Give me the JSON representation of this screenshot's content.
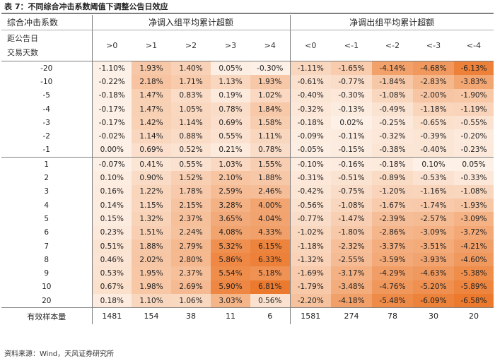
{
  "caption": "表 7：不同综合冲击系数阈值下调整公告日效应",
  "source": "资料来源：Wind，天风证券研究所",
  "header": {
    "corner_top": "综合冲击系数",
    "corner_bottom_1": "距公告日",
    "corner_bottom_2": "交易天数",
    "group_in": "净调入组平均累计超额",
    "group_out": "净调出组平均累计超额",
    "thresholds_in": [
      ">0",
      ">1",
      ">2",
      ">3",
      ">4"
    ],
    "thresholds_out": [
      "<0",
      "<-1",
      "<-2",
      "<-3",
      "<-4"
    ]
  },
  "rows": [
    {
      "day": "-20",
      "in": [
        "-1.10%",
        "1.93%",
        "1.40%",
        "0.05%",
        "-0.30%"
      ],
      "out": [
        "-1.11%",
        "-1.65%",
        "-4.14%",
        "-4.68%",
        "-6.13%"
      ]
    },
    {
      "day": "-10",
      "in": [
        "-0.22%",
        "2.18%",
        "1.71%",
        "1.13%",
        "1.93%"
      ],
      "out": [
        "-0.61%",
        "-0.77%",
        "-1.84%",
        "-2.83%",
        "-3.83%"
      ]
    },
    {
      "day": "-5",
      "in": [
        "-0.18%",
        "1.47%",
        "0.83%",
        "0.19%",
        "1.02%"
      ],
      "out": [
        "-0.40%",
        "-0.30%",
        "-1.08%",
        "-2.00%",
        "-1.90%"
      ]
    },
    {
      "day": "-4",
      "in": [
        "-0.17%",
        "1.47%",
        "1.05%",
        "0.78%",
        "1.84%"
      ],
      "out": [
        "-0.32%",
        "-0.13%",
        "-0.49%",
        "-1.18%",
        "-1.19%"
      ]
    },
    {
      "day": "-3",
      "in": [
        "-0.17%",
        "1.42%",
        "1.14%",
        "0.69%",
        "1.58%"
      ],
      "out": [
        "-0.18%",
        "0.02%",
        "-0.25%",
        "-0.65%",
        "-0.55%"
      ]
    },
    {
      "day": "-2",
      "in": [
        "-0.02%",
        "1.14%",
        "0.88%",
        "0.55%",
        "1.11%"
      ],
      "out": [
        "-0.09%",
        "-0.11%",
        "-0.32%",
        "-0.39%",
        "-0.20%"
      ]
    },
    {
      "day": "-1",
      "in": [
        "0.00%",
        "0.69%",
        "0.52%",
        "0.21%",
        "0.78%"
      ],
      "out": [
        "-0.05%",
        "-0.15%",
        "-0.38%",
        "-0.40%",
        "-0.23%"
      ]
    },
    {
      "day": "1",
      "in": [
        "-0.07%",
        "0.41%",
        "0.55%",
        "1.03%",
        "1.55%"
      ],
      "out": [
        "-0.10%",
        "-0.16%",
        "-0.18%",
        "0.10%",
        "0.05%"
      ]
    },
    {
      "day": "2",
      "in": [
        "0.10%",
        "0.90%",
        "1.52%",
        "2.10%",
        "1.88%"
      ],
      "out": [
        "-0.31%",
        "-0.51%",
        "-0.89%",
        "-0.53%",
        "-0.33%"
      ]
    },
    {
      "day": "3",
      "in": [
        "0.16%",
        "1.22%",
        "1.78%",
        "2.59%",
        "2.46%"
      ],
      "out": [
        "-0.42%",
        "-0.75%",
        "-1.20%",
        "-1.16%",
        "-1.08%"
      ]
    },
    {
      "day": "4",
      "in": [
        "0.14%",
        "1.15%",
        "2.15%",
        "3.28%",
        "4.00%"
      ],
      "out": [
        "-0.56%",
        "-1.08%",
        "-1.67%",
        "-1.74%",
        "-1.93%"
      ]
    },
    {
      "day": "5",
      "in": [
        "0.15%",
        "1.32%",
        "2.37%",
        "3.65%",
        "4.04%"
      ],
      "out": [
        "-0.77%",
        "-1.47%",
        "-2.39%",
        "-2.57%",
        "-3.09%"
      ]
    },
    {
      "day": "6",
      "in": [
        "0.23%",
        "1.51%",
        "2.24%",
        "4.08%",
        "4.33%"
      ],
      "out": [
        "-1.02%",
        "-1.80%",
        "-2.86%",
        "-3.09%",
        "-3.72%"
      ]
    },
    {
      "day": "7",
      "in": [
        "0.51%",
        "1.88%",
        "2.79%",
        "5.32%",
        "6.15%"
      ],
      "out": [
        "-1.18%",
        "-2.32%",
        "-3.37%",
        "-3.51%",
        "-4.21%"
      ]
    },
    {
      "day": "8",
      "in": [
        "0.46%",
        "2.02%",
        "2.80%",
        "5.86%",
        "6.33%"
      ],
      "out": [
        "-1.32%",
        "-2.55%",
        "-3.59%",
        "-3.93%",
        "-4.60%"
      ]
    },
    {
      "day": "9",
      "in": [
        "0.53%",
        "1.95%",
        "2.37%",
        "5.54%",
        "5.18%"
      ],
      "out": [
        "-1.69%",
        "-3.17%",
        "-4.29%",
        "-4.63%",
        "-5.38%"
      ]
    },
    {
      "day": "10",
      "in": [
        "0.67%",
        "1.98%",
        "2.69%",
        "5.90%",
        "6.81%"
      ],
      "out": [
        "-1.79%",
        "-3.48%",
        "-4.76%",
        "-5.20%",
        "-5.89%"
      ]
    },
    {
      "day": "20",
      "in": [
        "0.18%",
        "1.10%",
        "1.06%",
        "3.03%",
        "0.56%"
      ],
      "out": [
        "-2.20%",
        "-4.18%",
        "-5.48%",
        "-6.09%",
        "-6.58%"
      ]
    }
  ],
  "footer": {
    "label": "有效样本量",
    "in": [
      "1481",
      "154",
      "38",
      "11",
      "6"
    ],
    "out": [
      "1581",
      "274",
      "78",
      "30",
      "20"
    ]
  },
  "colors": {
    "heat_low": "#fdf0e6",
    "heat_high": "#ec7a2e",
    "rule": "#7f7f7f"
  }
}
